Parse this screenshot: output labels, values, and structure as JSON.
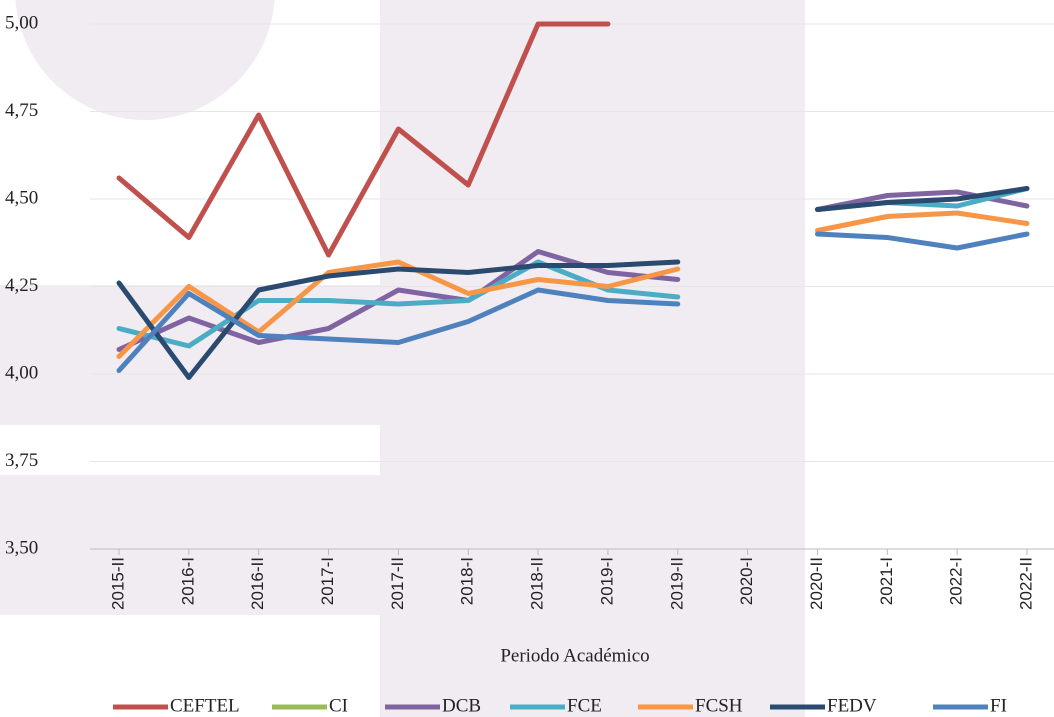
{
  "chart_data": {
    "type": "line",
    "x_label": "Periodo Académico",
    "categories": [
      "2015-II",
      "2016-I",
      "2016-II",
      "2017-I",
      "2017-II",
      "2018-I",
      "2018-II",
      "2019-I",
      "2019-II",
      "2020-I",
      "2020-II",
      "2021-I",
      "2022-I",
      "2022-II"
    ],
    "ylim": [
      3.5,
      5.0
    ],
    "yticks": [
      {
        "value": 3.5,
        "label": "3,50"
      },
      {
        "value": 3.75,
        "label": "3,75"
      },
      {
        "value": 4.0,
        "label": "4,00"
      },
      {
        "value": 4.25,
        "label": "4,25"
      },
      {
        "value": 4.5,
        "label": "4,50"
      },
      {
        "value": 4.75,
        "label": "4,75"
      },
      {
        "value": 5.0,
        "label": "5,00"
      }
    ],
    "grid": true,
    "legend": "bottom",
    "series": [
      {
        "name": "CEFTEL",
        "color": "#c0504d",
        "values": [
          4.56,
          4.39,
          4.74,
          4.34,
          4.7,
          4.54,
          5.0,
          5.0,
          null,
          null,
          null,
          null,
          null,
          null
        ]
      },
      {
        "name": "CI",
        "color": "#9bbb59",
        "values": [
          null,
          null,
          null,
          null,
          null,
          null,
          null,
          null,
          null,
          null,
          null,
          null,
          null,
          null
        ]
      },
      {
        "name": "DCB",
        "color": "#8064a2",
        "values": [
          4.07,
          4.16,
          4.09,
          4.13,
          4.24,
          4.21,
          4.35,
          4.29,
          4.27,
          null,
          4.47,
          4.51,
          4.52,
          4.48
        ]
      },
      {
        "name": "FCE",
        "color": "#4bacc6",
        "values": [
          4.13,
          4.08,
          4.21,
          4.21,
          4.2,
          4.21,
          4.32,
          4.24,
          4.22,
          null,
          4.47,
          4.49,
          4.48,
          4.53
        ]
      },
      {
        "name": "FCSH",
        "color": "#f79646",
        "values": [
          4.05,
          4.25,
          4.12,
          4.29,
          4.32,
          4.23,
          4.27,
          4.25,
          4.3,
          null,
          4.41,
          4.45,
          4.46,
          4.43
        ]
      },
      {
        "name": "FEDV",
        "color": "#2b4a6f",
        "values": [
          4.26,
          3.99,
          4.24,
          4.28,
          4.3,
          4.29,
          4.31,
          4.31,
          4.32,
          null,
          4.47,
          4.49,
          4.5,
          4.53
        ]
      },
      {
        "name": "FI",
        "color": "#4f81bd",
        "values": [
          4.01,
          4.23,
          4.11,
          4.1,
          4.09,
          4.15,
          4.24,
          4.21,
          4.2,
          null,
          4.4,
          4.39,
          4.36,
          4.4
        ]
      }
    ]
  }
}
